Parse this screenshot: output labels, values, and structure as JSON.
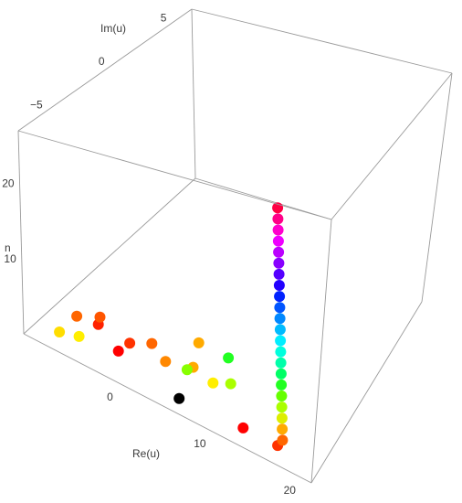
{
  "chart_data": {
    "type": "scatter",
    "subtype": "3d-point-cloud",
    "title": "",
    "axes": {
      "x": {
        "label": "Re(u)",
        "range": [
          -10,
          22
        ],
        "ticks": [
          0,
          10,
          20
        ]
      },
      "y": {
        "label": "Im(u)",
        "range": [
          -8,
          6
        ],
        "ticks": [
          -5,
          0,
          5
        ]
      },
      "z": {
        "label": "n",
        "range": [
          0,
          27
        ],
        "ticks": [
          10,
          20
        ]
      }
    },
    "color_encoding": "hue by argument of u (red → yellow → green → cyan → blue → purple → magenta)",
    "points": [
      {
        "x": 6.5,
        "y": 0,
        "z": 0,
        "color": "#000000"
      },
      {
        "x": 13,
        "y": 0,
        "z": 0.3,
        "color": "#ff0000"
      },
      {
        "x": 16.5,
        "y": 0,
        "z": 0.3,
        "color": "#ff3300"
      },
      {
        "x": 17,
        "y": 0,
        "z": 1,
        "color": "#ff6600"
      },
      {
        "x": 17,
        "y": 0,
        "z": 2,
        "color": "#ffaa00"
      },
      {
        "x": 17,
        "y": 0,
        "z": 3,
        "color": "#ddee00"
      },
      {
        "x": 17,
        "y": 0,
        "z": 4,
        "color": "#aaff00"
      },
      {
        "x": 17,
        "y": 0,
        "z": 5,
        "color": "#66ff00"
      },
      {
        "x": 17,
        "y": 0,
        "z": 6,
        "color": "#22ff22"
      },
      {
        "x": 17,
        "y": 0,
        "z": 7,
        "color": "#00ff66"
      },
      {
        "x": 17,
        "y": 0,
        "z": 8,
        "color": "#00ffaa"
      },
      {
        "x": 17,
        "y": 0,
        "z": 9,
        "color": "#00ffdd"
      },
      {
        "x": 17,
        "y": 0,
        "z": 10,
        "color": "#00eeff"
      },
      {
        "x": 17,
        "y": 0,
        "z": 11,
        "color": "#00bbff"
      },
      {
        "x": 17,
        "y": 0,
        "z": 12,
        "color": "#0088ff"
      },
      {
        "x": 17,
        "y": 0,
        "z": 13,
        "color": "#0055ff"
      },
      {
        "x": 17,
        "y": 0,
        "z": 14,
        "color": "#0022ff"
      },
      {
        "x": 17,
        "y": 0,
        "z": 15,
        "color": "#2200ff"
      },
      {
        "x": 17,
        "y": 0,
        "z": 16,
        "color": "#5500ff"
      },
      {
        "x": 17,
        "y": 0,
        "z": 17,
        "color": "#8800ff"
      },
      {
        "x": 17,
        "y": 0,
        "z": 18,
        "color": "#bb00ff"
      },
      {
        "x": 17,
        "y": 0,
        "z": 19,
        "color": "#ee00ff"
      },
      {
        "x": 17,
        "y": 0,
        "z": 20,
        "color": "#ff00cc"
      },
      {
        "x": 17,
        "y": 0,
        "z": 21,
        "color": "#ff0088"
      },
      {
        "x": 17,
        "y": 0,
        "z": 22,
        "color": "#ff0044"
      },
      {
        "x": 2,
        "y": -2,
        "z": 3,
        "color": "#ff0000"
      },
      {
        "x": 3,
        "y": 1,
        "z": 3,
        "color": "#ff6600"
      },
      {
        "x": 6,
        "y": -1,
        "z": 3.5,
        "color": "#ff8800"
      },
      {
        "x": 8,
        "y": 0,
        "z": 3.5,
        "color": "#ffaa00"
      },
      {
        "x": 10,
        "y": 0,
        "z": 3,
        "color": "#ffee00"
      },
      {
        "x": 11,
        "y": 1,
        "z": 3,
        "color": "#aaff00"
      },
      {
        "x": 4,
        "y": -3,
        "z": 5,
        "color": "#ff3300"
      },
      {
        "x": 7,
        "y": 2,
        "z": 4.5,
        "color": "#ffaa00"
      },
      {
        "x": 9,
        "y": -2,
        "z": 4.5,
        "color": "#88ff00"
      },
      {
        "x": 10,
        "y": 2,
        "z": 4.5,
        "color": "#22ff22"
      },
      {
        "x": -3,
        "y": -1,
        "z": 3.5,
        "color": "#ff6600"
      },
      {
        "x": -4,
        "y": -2,
        "z": 2,
        "color": "#ffdd00"
      },
      {
        "x": -2,
        "y": -2,
        "z": 2.5,
        "color": "#ffee00"
      },
      {
        "x": 0,
        "y": -2,
        "z": 4.5,
        "color": "#ff2200"
      },
      {
        "x": 1,
        "y": -3,
        "z": 6,
        "color": "#ff5500"
      }
    ]
  }
}
